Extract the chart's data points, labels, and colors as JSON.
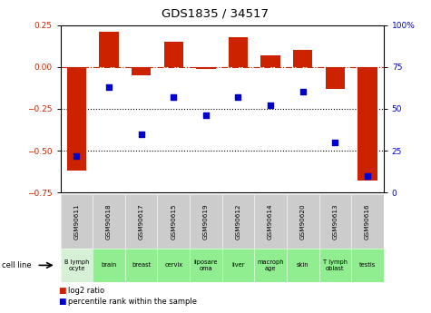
{
  "title": "GDS1835 / 34517",
  "samples": [
    "GSM90611",
    "GSM90618",
    "GSM90617",
    "GSM90615",
    "GSM90619",
    "GSM90612",
    "GSM90614",
    "GSM90620",
    "GSM90613",
    "GSM90616"
  ],
  "cell_lines": [
    "B lymph\nocyte",
    "brain",
    "breast",
    "cervix",
    "liposare\noma",
    "liver",
    "macroph\nage",
    "skin",
    "T lymph\noblast",
    "testis"
  ],
  "cell_line_colors": [
    "#d5f0d5",
    "#90ee90",
    "#90ee90",
    "#90ee90",
    "#90ee90",
    "#90ee90",
    "#90ee90",
    "#90ee90",
    "#90ee90",
    "#90ee90"
  ],
  "log2_ratio": [
    -0.62,
    0.21,
    -0.05,
    0.15,
    -0.01,
    0.18,
    0.07,
    0.1,
    -0.13,
    -0.68
  ],
  "percentile_rank": [
    22,
    63,
    35,
    57,
    46,
    57,
    52,
    60,
    30,
    10
  ],
  "bar_color": "#cc2200",
  "dot_color": "#0000cc",
  "ylim_left": [
    -0.75,
    0.25
  ],
  "ylim_right": [
    0,
    100
  ],
  "hline_y": 0,
  "dotted_lines": [
    -0.25,
    -0.5
  ],
  "right_ticks": [
    0,
    25,
    50,
    75,
    100
  ],
  "left_ticks": [
    -0.75,
    -0.5,
    -0.25,
    0,
    0.25
  ],
  "bar_width": 0.6,
  "tick_label_size": 6.5,
  "title_fontsize": 9.5
}
